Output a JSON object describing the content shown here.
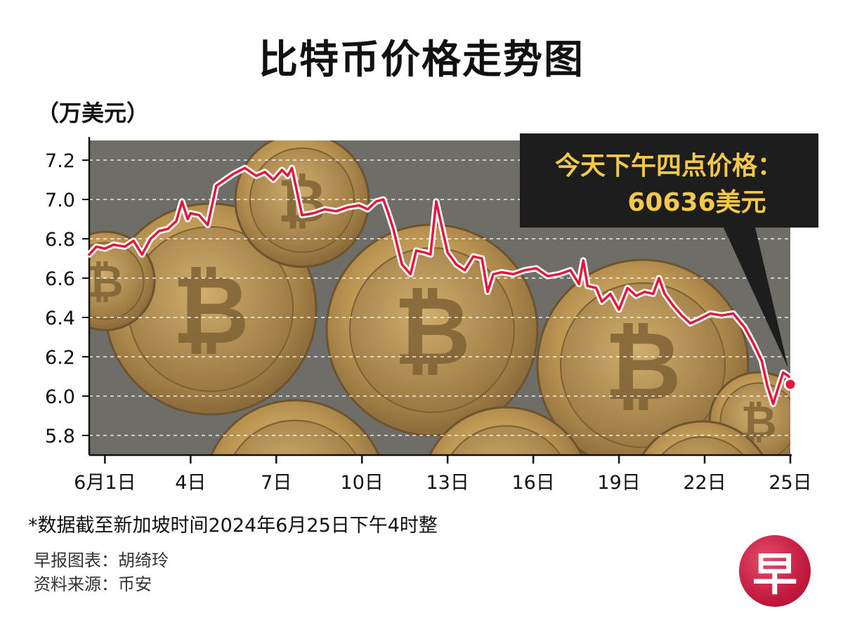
{
  "title": "比特币价格走势图",
  "unit_label": "（万美元）",
  "callout": {
    "line1": "今天下午四点价格：",
    "line2": "60636美元"
  },
  "footnote": "*数据截至新加坡时间2024年6月25日下午4时整",
  "credit_chart": "早报图表：胡绮玲",
  "credit_source": "资料来源：币安",
  "logo_char": "早",
  "colors": {
    "line": "#e4163c",
    "callout_bg": "#1d1d1d",
    "callout_text": "#f3c84b",
    "logo": "#c41a3f"
  },
  "chart_data": {
    "type": "line",
    "title": "比特币价格走势图",
    "ylabel": "（万美元）",
    "xlabel": "",
    "ylim": [
      5.7,
      7.3
    ],
    "y_ticks": [
      7.2,
      7.0,
      6.8,
      6.6,
      6.4,
      6.2,
      6.0,
      5.8
    ],
    "y_tick_labels": [
      "7.2",
      "7.0",
      "6.8",
      "6.6",
      "6.4",
      "6.2",
      "6.0",
      "5.8"
    ],
    "x_ticks": [
      1,
      4,
      7,
      10,
      13,
      16,
      19,
      22,
      25
    ],
    "x_tick_labels": [
      "6月1日",
      "4日",
      "7日",
      "10日",
      "13日",
      "16日",
      "19日",
      "22日",
      "25日"
    ],
    "xlim": [
      0.45,
      25.0
    ],
    "grid": "horizontal dashed",
    "series": [
      {
        "x": [
          0.45,
          0.7,
          1.0,
          1.3,
          1.7,
          2.0,
          2.3,
          2.6,
          2.9,
          3.2,
          3.5,
          3.7,
          3.9,
          4.0,
          4.3,
          4.6,
          4.9,
          5.2,
          5.5,
          5.9,
          6.3,
          6.6,
          6.9,
          7.2,
          7.4,
          7.55,
          7.9,
          8.3,
          8.7,
          9.1,
          9.5,
          9.9,
          10.2,
          10.5,
          10.75,
          10.9,
          11.1,
          11.4,
          11.7,
          11.9,
          12.2,
          12.4,
          12.6,
          12.8,
          13.0,
          13.3,
          13.6,
          13.9,
          14.2,
          14.4,
          14.6,
          14.9,
          15.3,
          15.7,
          16.1,
          16.5,
          16.9,
          17.3,
          17.6,
          17.75,
          17.9,
          18.2,
          18.4,
          18.7,
          19.0,
          19.3,
          19.6,
          19.9,
          20.2,
          20.4,
          20.6,
          20.9,
          21.2,
          21.5,
          21.8,
          22.2,
          22.6,
          23.0,
          23.4,
          23.7,
          24.0,
          24.2,
          24.4,
          24.55,
          24.75,
          24.95,
          25.0
        ],
        "y": [
          6.72,
          6.76,
          6.75,
          6.77,
          6.76,
          6.79,
          6.72,
          6.8,
          6.84,
          6.85,
          6.89,
          6.99,
          6.9,
          6.93,
          6.92,
          6.87,
          7.07,
          7.1,
          7.13,
          7.16,
          7.12,
          7.14,
          7.1,
          7.15,
          7.12,
          7.16,
          6.92,
          6.93,
          6.95,
          6.94,
          6.96,
          6.97,
          6.95,
          6.99,
          7.0,
          6.94,
          6.85,
          6.67,
          6.62,
          6.74,
          6.73,
          6.72,
          6.99,
          6.86,
          6.73,
          6.67,
          6.64,
          6.71,
          6.7,
          6.53,
          6.62,
          6.63,
          6.62,
          6.64,
          6.65,
          6.61,
          6.62,
          6.64,
          6.57,
          6.69,
          6.56,
          6.55,
          6.48,
          6.52,
          6.44,
          6.55,
          6.51,
          6.53,
          6.52,
          6.6,
          6.52,
          6.46,
          6.41,
          6.37,
          6.39,
          6.42,
          6.41,
          6.42,
          6.35,
          6.27,
          6.18,
          6.05,
          5.96,
          6.03,
          6.12,
          6.1,
          6.06
        ]
      }
    ],
    "annotation": {
      "text": "今天下午四点价格：60636美元",
      "x": 25.0,
      "y": 6.06
    }
  }
}
